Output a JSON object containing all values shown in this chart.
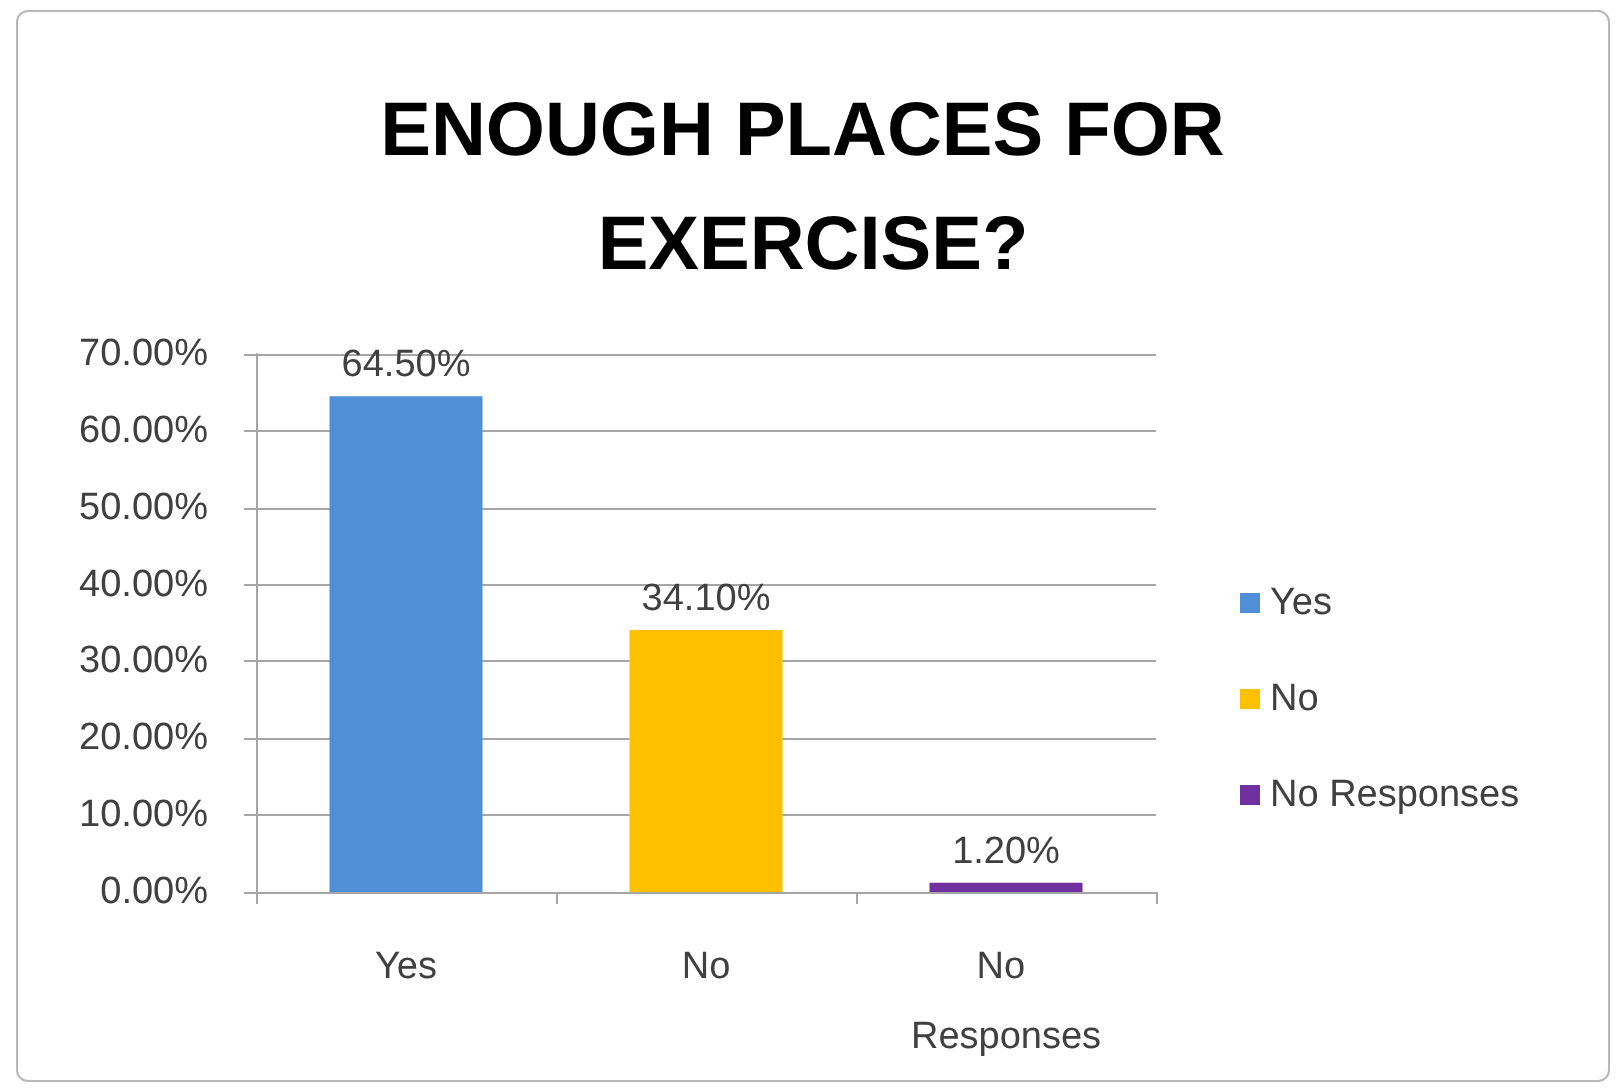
{
  "chart_data": {
    "type": "bar",
    "title": "ENOUGH PLACES FOR EXERCISE?",
    "categories": [
      "Yes",
      "No",
      "No Responses"
    ],
    "series": [
      {
        "name": "Yes",
        "color": "#4f8fd5",
        "values": [
          64.5,
          null,
          null
        ],
        "value_labels": [
          "64.50%",
          null,
          null
        ]
      },
      {
        "name": "No",
        "color": "#ffc000",
        "values": [
          null,
          34.1,
          null
        ],
        "value_labels": [
          null,
          "34.10%",
          null
        ]
      },
      {
        "name": "No Responses",
        "color": "#7030a0",
        "values": [
          null,
          null,
          1.2
        ],
        "value_labels": [
          null,
          null,
          "1.20%"
        ]
      }
    ],
    "stacked": true,
    "ylim": [
      0,
      70
    ],
    "yticks": [
      {
        "value": 0,
        "label": "0.00%"
      },
      {
        "value": 10,
        "label": "10.00%"
      },
      {
        "value": 20,
        "label": "20.00%"
      },
      {
        "value": 30,
        "label": "30.00%"
      },
      {
        "value": 40,
        "label": "40.00%"
      },
      {
        "value": 50,
        "label": "50.00%"
      },
      {
        "value": 60,
        "label": "60.00%"
      },
      {
        "value": 70,
        "label": "70.00%"
      }
    ],
    "grid": "y",
    "legend": "right"
  }
}
